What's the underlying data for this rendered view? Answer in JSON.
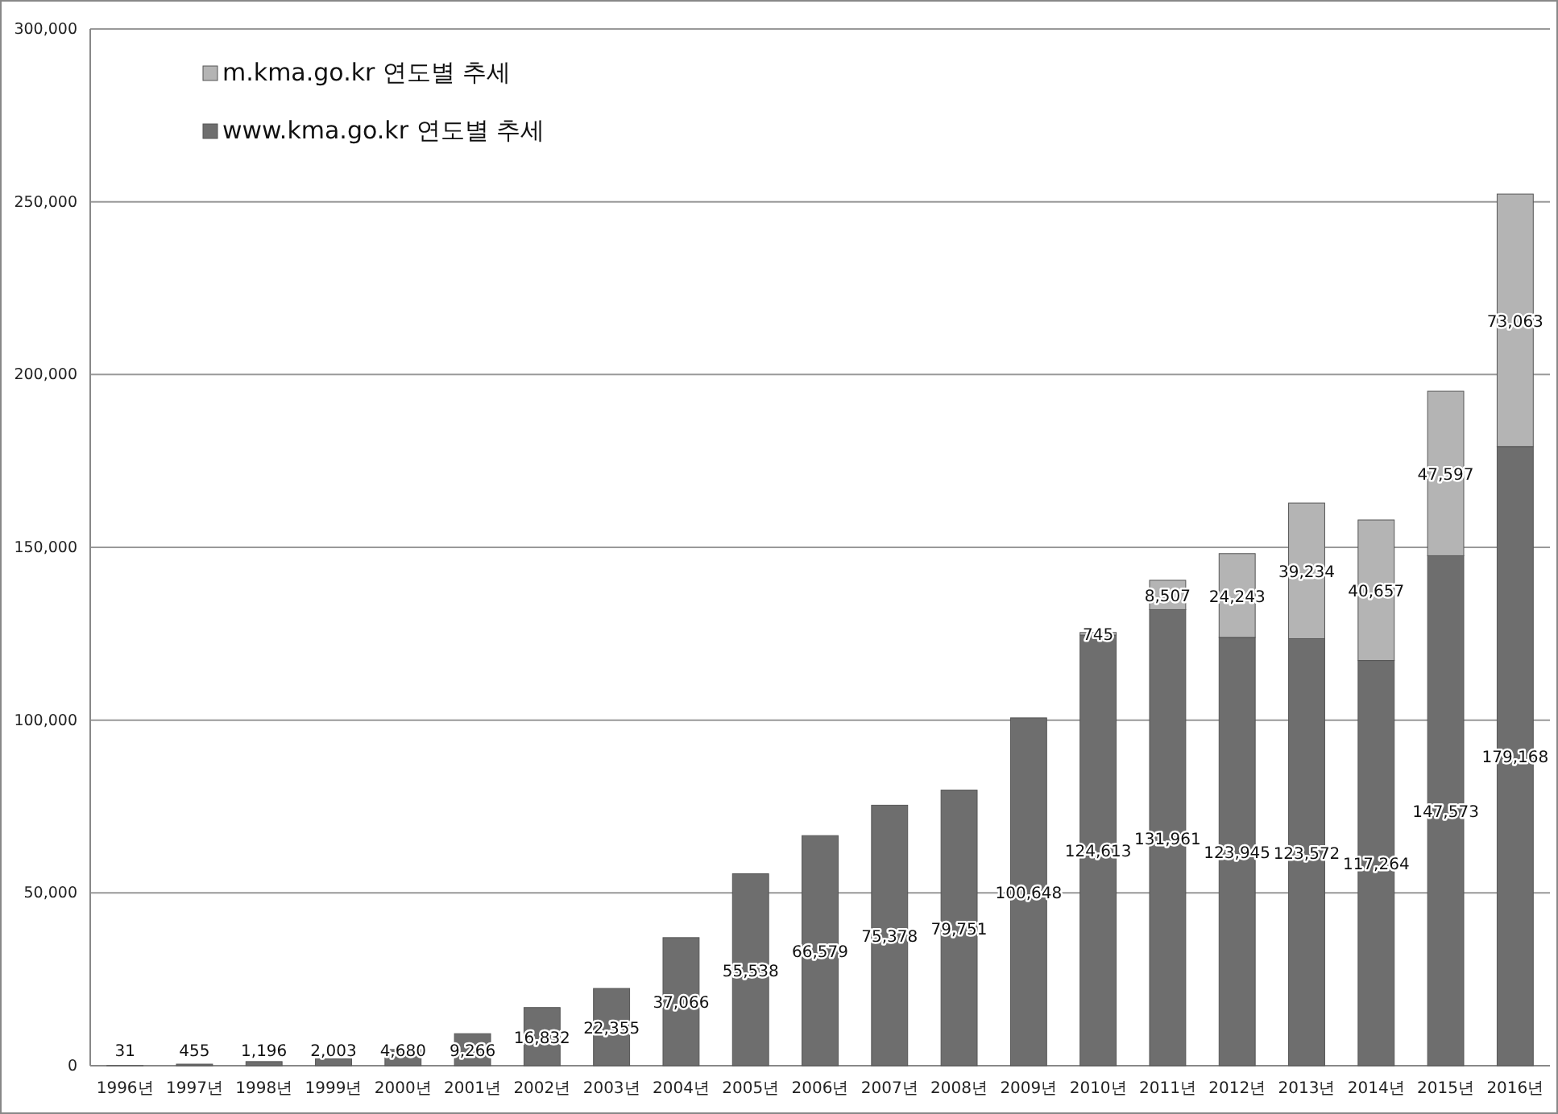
{
  "chart_data": {
    "type": "bar",
    "stacked": true,
    "grid": "y",
    "legend": "top left",
    "categories": [
      "1996년",
      "1997년",
      "1998년",
      "1999년",
      "2000년",
      "2001년",
      "2002년",
      "2003년",
      "2004년",
      "2005년",
      "2006년",
      "2007년",
      "2008년",
      "2009년",
      "2010년",
      "2011년",
      "2012년",
      "2013년",
      "2014년",
      "2015년",
      "2016년"
    ],
    "ylim": [
      0,
      300000
    ],
    "yticks": [
      {
        "value": 0,
        "label": "0"
      },
      {
        "value": 50000,
        "label": "50,000"
      },
      {
        "value": 100000,
        "label": "100,000"
      },
      {
        "value": 150000,
        "label": "150,000"
      },
      {
        "value": 200000,
        "label": "200,000"
      },
      {
        "value": 250000,
        "label": "250,000"
      },
      {
        "value": 300000,
        "label": "300,000"
      }
    ],
    "series": [
      {
        "name": "www.kma.go.kr 연도별 추세",
        "color": "#6e6e6e",
        "values": [
          31,
          455,
          1196,
          2003,
          4680,
          9266,
          16832,
          22355,
          37066,
          55538,
          66579,
          75378,
          79751,
          100648,
          124613,
          131961,
          123945,
          123572,
          117264,
          147573,
          179168
        ],
        "value_labels": [
          "31",
          "455",
          "1,196",
          "2,003",
          "4,680",
          "9,266",
          "16,832",
          "22,355",
          "37,066",
          "55,538",
          "66,579",
          "75,378",
          "79,751",
          "100,648",
          "124,613",
          "131,961",
          "123,945",
          "123,572",
          "117,264",
          "147,573",
          "179,168"
        ]
      },
      {
        "name": "m.kma.go.kr 연도별 추세",
        "color": "#b4b4b4",
        "values": [
          null,
          null,
          null,
          null,
          null,
          null,
          null,
          null,
          null,
          null,
          null,
          null,
          null,
          null,
          745,
          8507,
          24243,
          39234,
          40657,
          47597,
          73063
        ],
        "value_labels": [
          null,
          null,
          null,
          null,
          null,
          null,
          null,
          null,
          null,
          null,
          null,
          null,
          null,
          null,
          "745",
          "8,507",
          "24,243",
          "39,234",
          "40,657",
          "47,597",
          "73,063"
        ]
      }
    ]
  }
}
